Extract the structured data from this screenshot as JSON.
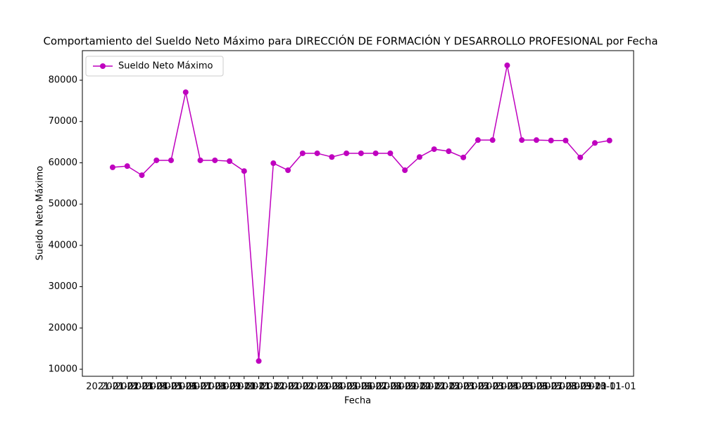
{
  "chart_data": {
    "type": "line",
    "title": "Comportamiento del Sueldo Neto Máximo para DIRECCIÓN DE FORMACIÓN Y DESARROLLO PROFESIONAL por Fecha",
    "x_label": "Fecha",
    "y_label": "Sueldo Neto Máximo",
    "categories": [
      "2021-01-01",
      "2021-02-01",
      "2021-03-01",
      "2021-04-01",
      "2021-05-01",
      "2021-06-01",
      "2021-07-01",
      "2021-08-01",
      "2021-09-01",
      "2021-10-01",
      "2021-11-01",
      "2021-12-01",
      "2022-01-01",
      "2022-02-01",
      "2022-03-01",
      "2022-04-01",
      "2022-05-01",
      "2022-06-01",
      "2022-07-01",
      "2022-08-01",
      "2022-09-01",
      "2022-10-01",
      "2022-11-01",
      "2022-12-01",
      "2023-01-01",
      "2023-02-01",
      "2023-03-01",
      "2023-04-01",
      "2023-05-01",
      "2023-06-01",
      "2023-07-01",
      "2023-08-01",
      "2023-09-01",
      "2023-10-01",
      "2023-11-01"
    ],
    "series": [
      {
        "name": "Sueldo Neto Máximo",
        "color": "#bf00bf",
        "values": [
          58900,
          59200,
          57000,
          60600,
          60600,
          77100,
          60600,
          60600,
          60400,
          58000,
          12000,
          59900,
          58200,
          62300,
          62300,
          61400,
          62300,
          62300,
          62300,
          62300,
          58200,
          61400,
          63300,
          62800,
          61300,
          65500,
          65500,
          83600,
          65500,
          65500,
          65400,
          65400,
          61300,
          64800,
          65400
        ]
      }
    ],
    "ylim": [
      8300,
      87160
    ],
    "yticks": [
      10000,
      20000,
      30000,
      40000,
      50000,
      60000,
      70000,
      80000
    ],
    "legend": "upper left",
    "grid": false
  }
}
